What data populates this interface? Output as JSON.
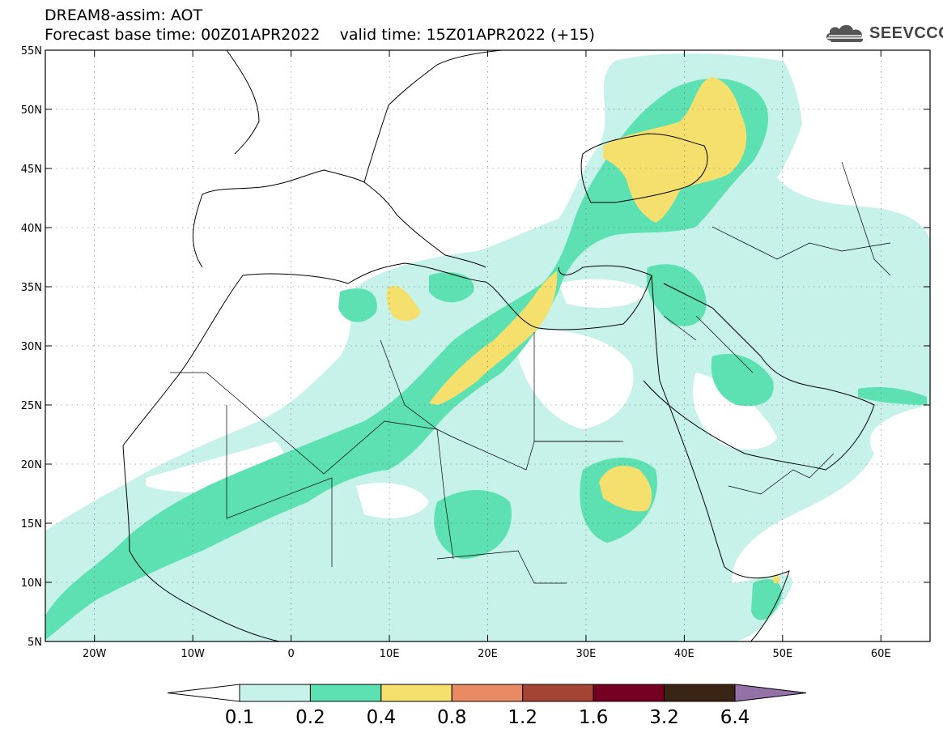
{
  "header": {
    "line1": "DREAM8-assim: AOT",
    "line2": "Forecast base time: 00Z01APR2022    valid time: 15Z01APR2022 (+15)"
  },
  "logo": {
    "text": "SEEVCCC",
    "icon": "cloud-icon"
  },
  "map": {
    "lon_range": [
      -25,
      65
    ],
    "lat_range": [
      5,
      55
    ],
    "lon_ticks": [
      {
        "value": -20,
        "label": "20W"
      },
      {
        "value": -10,
        "label": "10W"
      },
      {
        "value": 0,
        "label": "0"
      },
      {
        "value": 10,
        "label": "10E"
      },
      {
        "value": 20,
        "label": "20E"
      },
      {
        "value": 30,
        "label": "30E"
      },
      {
        "value": 40,
        "label": "40E"
      },
      {
        "value": 50,
        "label": "50E"
      },
      {
        "value": 60,
        "label": "60E"
      }
    ],
    "lat_ticks": [
      {
        "value": 55,
        "label": "55N"
      },
      {
        "value": 50,
        "label": "50N"
      },
      {
        "value": 45,
        "label": "45N"
      },
      {
        "value": 40,
        "label": "40N"
      },
      {
        "value": 35,
        "label": "35N"
      },
      {
        "value": 30,
        "label": "30N"
      },
      {
        "value": 25,
        "label": "25N"
      },
      {
        "value": 20,
        "label": "20N"
      },
      {
        "value": 15,
        "label": "15N"
      },
      {
        "value": 10,
        "label": "10N"
      },
      {
        "value": 5,
        "label": "5N"
      }
    ],
    "grid": true
  },
  "colorbar": {
    "labels": [
      "0.1",
      "0.2",
      "0.4",
      "0.8",
      "1.2",
      "1.6",
      "3.2",
      "6.4"
    ],
    "colors": [
      "#ffffff",
      "#c6f2ea",
      "#5de0b2",
      "#f5e06e",
      "#e98a64",
      "#a34434",
      "#760024",
      "#3a2414",
      "#9471a6"
    ]
  }
}
